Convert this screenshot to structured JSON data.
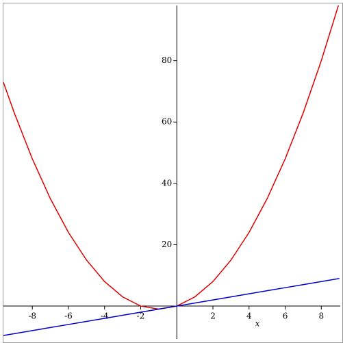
{
  "chart_data": {
    "type": "line",
    "x": [
      -9.6,
      -9,
      -8,
      -7,
      -6,
      -5,
      -4,
      -3,
      -2,
      -1,
      0,
      1,
      2,
      3,
      4,
      5,
      6,
      7,
      8,
      9
    ],
    "series": [
      {
        "color": "#e00000",
        "values": [
          72.96,
          63,
          48,
          35,
          24,
          15,
          8,
          3,
          0,
          -1,
          0,
          3,
          8,
          15,
          24,
          35,
          48,
          63,
          80,
          99
        ]
      },
      {
        "color": "#0000cc",
        "values": [
          -9.6,
          -9,
          -8,
          -7,
          -6,
          -5,
          -4,
          -3,
          -2,
          -1,
          0,
          1,
          2,
          3,
          4,
          5,
          6,
          7,
          8,
          9
        ]
      }
    ],
    "xlabel": "x",
    "xlim": [
      -9.6,
      9.05
    ],
    "ylim": [
      -10.7,
      98
    ],
    "xticks": [
      -8,
      -6,
      -4,
      -2,
      2,
      4,
      6,
      8
    ],
    "yticks": [
      20,
      40,
      60,
      80
    ]
  }
}
